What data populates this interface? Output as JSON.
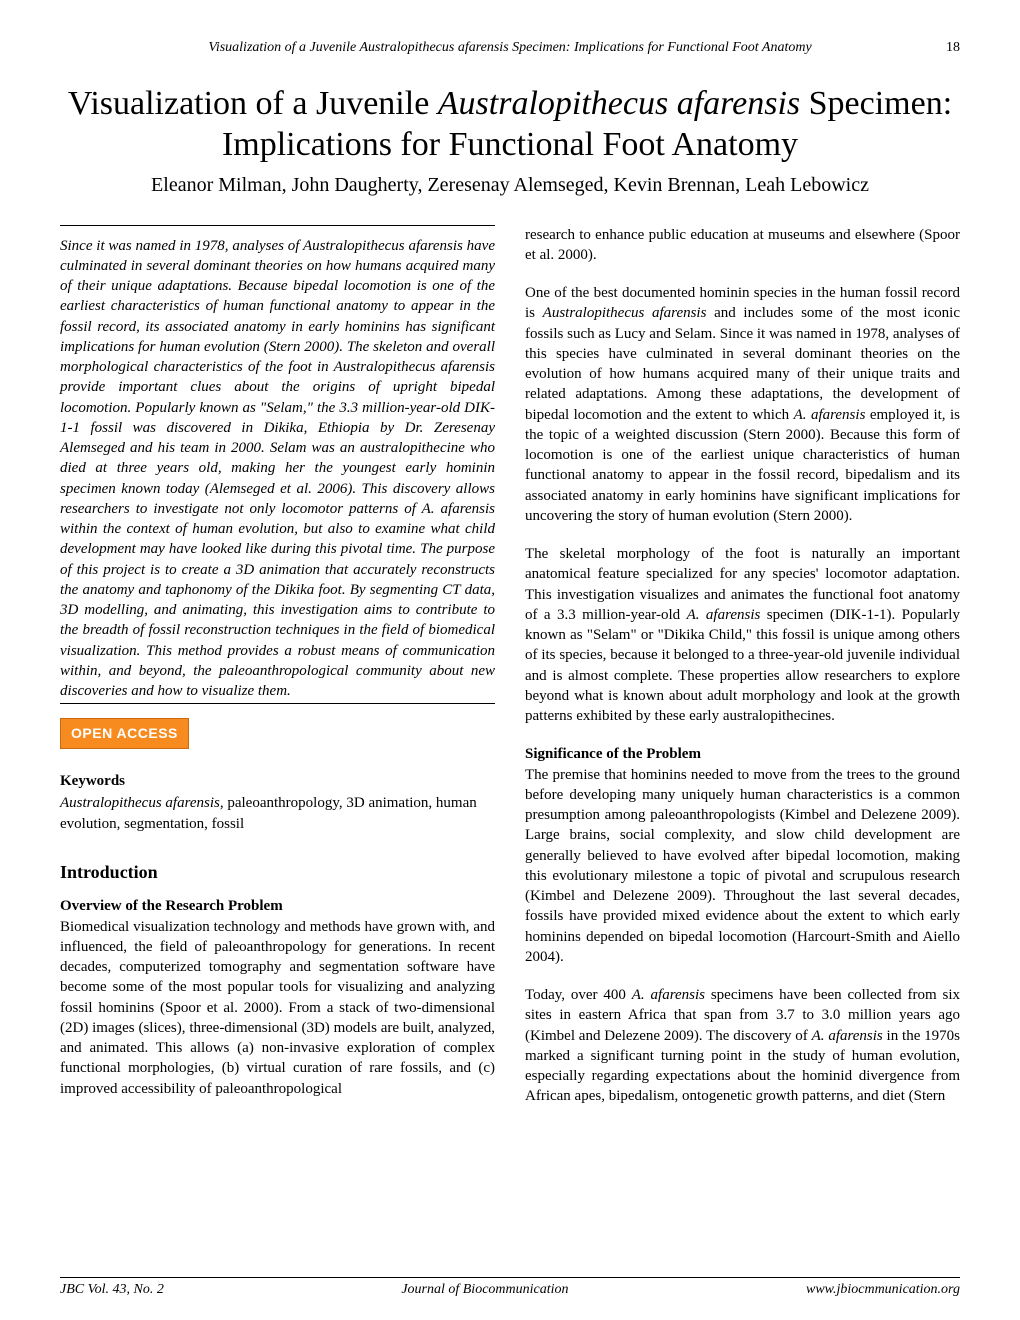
{
  "running_header": {
    "text": "Visualization of a Juvenile Australopithecus afarensis Specimen: Implications for Functional Foot Anatomy",
    "page_number": "18"
  },
  "title": {
    "prefix": "Visualization of a Juvenile ",
    "italic": "Australopithecus afarensis",
    "suffix": " Specimen: Implications for Functional Foot Anatomy"
  },
  "authors": "Eleanor Milman, John Daugherty, Zeresenay Alemseged, Kevin Brennan, Leah Lebowicz",
  "abstract": "Since it was named in 1978, analyses of Australopithecus afarensis have culminated in several dominant theories on how humans acquired many of their unique adaptations. Because bipedal locomotion is one of the earliest characteristics of human functional anatomy to appear in the fossil record, its associated anatomy in early hominins has significant implications for human evolution (Stern 2000). The skeleton and overall morphological characteristics of the foot in Australopithecus afarensis provide important clues about the origins of upright bipedal locomotion. Popularly known as \"Selam,\" the 3.3 million-year-old DIK-1-1 fossil was discovered in Dikika, Ethiopia by Dr. Zeresenay Alemseged and his team in 2000. Selam was an australopithecine who died at three years old, making her the youngest early hominin specimen known today (Alemseged et al. 2006). This discovery allows researchers to investigate not only locomotor patterns of A. afarensis within the context of human evolution, but also to examine what child development may have looked like during this pivotal time. The purpose of this project is to create a 3D animation that accurately reconstructs the anatomy and taphonomy of the Dikika foot. By segmenting CT data, 3D modelling, and animating, this investigation aims to contribute to the breadth of fossil reconstruction techniques in the field of biomedical visualization. This method provides a robust means of communication within, and beyond, the paleoanthropological community about new discoveries and how to visualize them.",
  "open_access_label": "OPEN ACCESS",
  "keywords": {
    "heading": "Keywords",
    "italic_part": "Australopithecus afarensis",
    "rest": ", paleoanthropology, 3D animation, human evolution, segmentation, fossil"
  },
  "introduction_heading": "Introduction",
  "overview_subheading": "Overview of the Research Problem",
  "left_body_p1": "Biomedical visualization technology and methods have grown with, and influenced, the field of paleoanthropology for generations. In recent decades, computerized tomography and segmentation software have become some of the most popular tools for visualizing and analyzing fossil hominins (Spoor et al. 2000). From a stack of two-dimensional (2D) images (slices), three-dimensional (3D) models  are built, analyzed, and animated. This allows (a) non-invasive exploration of complex functional morphologies, (b) virtual curation of rare fossils, and (c) improved accessibility of paleoanthropological",
  "right_body": {
    "p1": "research to enhance public education at museums and elsewhere (Spoor et al. 2000).",
    "p2_a": "One of the best documented hominin species in the human fossil record is ",
    "p2_i1": "Australopithecus afarensis",
    "p2_b": " and includes some of the most iconic fossils such as Lucy and Selam. Since it was named in 1978, analyses of this species have culminated in several dominant theories on the evolution of how humans acquired many of their unique traits and related adaptations. Among these adaptations, the development of bipedal locomotion and the extent to which ",
    "p2_i2": "A. afarensis",
    "p2_c": " employed it, is the topic of a weighted discussion (Stern 2000). Because this form of locomotion is one of the earliest unique characteristics of human functional anatomy to appear in the fossil record, bipedalism and its associated anatomy in early hominins have significant implications for uncovering the story of human evolution (Stern 2000).",
    "p3_a": "The skeletal morphology of the foot is naturally an important anatomical feature specialized for any species' locomotor adaptation. This investigation visualizes and animates the functional foot anatomy of a 3.3 million-year-old ",
    "p3_i1": "A. afarensis",
    "p3_b": " specimen (DIK-1-1). Popularly known as \"Selam\" or \"Dikika Child,\" this fossil is unique among others of its species, because it belonged to a three-year-old juvenile individual and is almost complete. These properties allow researchers to explore beyond what is known about adult morphology and look at the growth patterns exhibited by these early australopithecines.",
    "sig_heading": "Significance of the Problem",
    "p4": "The premise that hominins needed to move from the trees to the ground before developing many uniquely human characteristics is a common presumption among paleoanthropologists (Kimbel and Delezene 2009). Large brains, social complexity, and slow child development are generally believed to have evolved after bipedal locomotion, making this evolutionary milestone a topic of pivotal and scrupulous research (Kimbel and Delezene 2009). Throughout the last several decades, fossils have provided mixed evidence about the extent to which early hominins depended on bipedal locomotion (Harcourt-Smith and Aiello 2004).",
    "p5_a": "Today, over 400 ",
    "p5_i1": "A. afarensis",
    "p5_b": " specimens have been collected from six sites in eastern Africa that span from 3.7 to 3.0 million years ago (Kimbel and Delezene 2009). The discovery of ",
    "p5_i2": "A. afarensis",
    "p5_c": " in the 1970s marked a significant turning point in the study of human evolution, especially regarding expectations about the hominid divergence from African apes, bipedalism, ontogenetic growth patterns, and diet (Stern"
  },
  "footer": {
    "left": "JBC Vol. 43, No. 2",
    "center": "Journal of Biocommunication",
    "right": "www.jbiocmmunication.org"
  },
  "colors": {
    "open_access_bg": "#f78b1f",
    "open_access_text": "#ffffff"
  }
}
